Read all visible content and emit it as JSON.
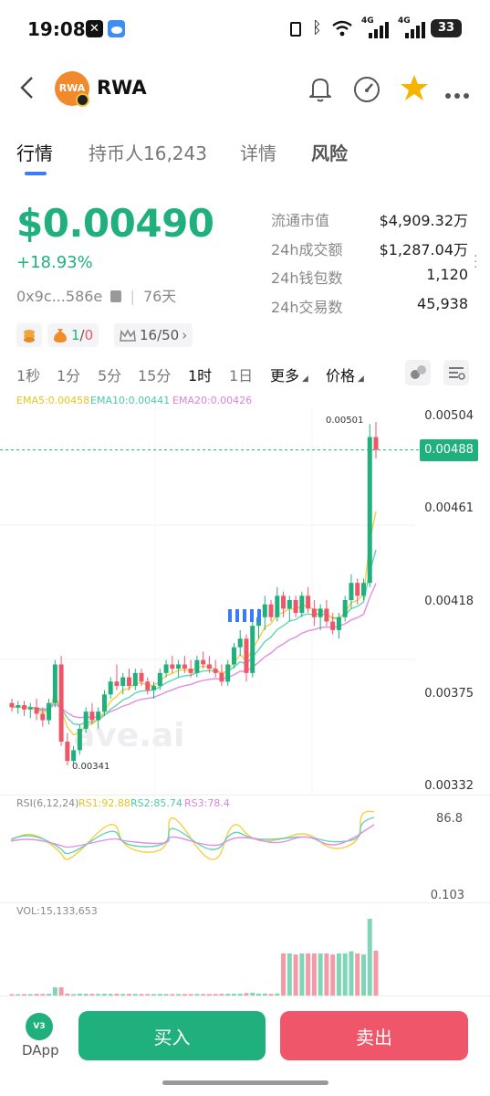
{
  "status_bar": {
    "time": "19:08",
    "battery": "33",
    "signal1": "4G",
    "signal2": "4G"
  },
  "header": {
    "token_name": "RWA",
    "logo_text": "RWA"
  },
  "tabs": [
    {
      "label": "行情"
    },
    {
      "label": "持币人16,243"
    },
    {
      "label": "详情"
    },
    {
      "label": "风险"
    }
  ],
  "price_info": {
    "price": "$0.00490",
    "change": "+18.93%",
    "address": "0x9c...586e",
    "age": "76天"
  },
  "stats": [
    {
      "label": "流通市值",
      "value": "$4,909.32万"
    },
    {
      "label": "24h成交额",
      "value": "$1,287.04万"
    },
    {
      "label": "24h钱包数",
      "value": "1,120"
    },
    {
      "label": "24h交易数",
      "value": "45,938"
    }
  ],
  "chips": {
    "holders_ratio_a": "1",
    "holders_ratio_sep": "/",
    "holders_ratio_b": "0",
    "top_rank": "16/50"
  },
  "timeframes": [
    {
      "label": "1秒"
    },
    {
      "label": "1分"
    },
    {
      "label": "5分"
    },
    {
      "label": "15分"
    },
    {
      "label": "1时"
    },
    {
      "label": "1日"
    },
    {
      "label": "更多"
    },
    {
      "label": "价格"
    }
  ],
  "active_timeframe": "1时",
  "ema_legend": {
    "ema5": "EMA5:0.00458",
    "ema10": "EMA10:0.00441",
    "ema20": "EMA20:0.00426"
  },
  "price_axis": [
    "0.00504",
    "0.00461",
    "0.00418",
    "0.00375",
    "0.00332"
  ],
  "current_price_tag": "0.00488",
  "high_label": "0.00501",
  "low_label": "0.00341",
  "watermark": "ave.ai",
  "rsi": {
    "label": "RSI(6,12,24)",
    "rsi1": "RS1:92.88",
    "rsi2": "RS2:85.74",
    "rsi3": "RS3:78.4",
    "top": "86.8",
    "bottom": "0.103"
  },
  "vol": {
    "label": "VOL:15,133,653"
  },
  "bottom_bar": {
    "dapp_label": "DApp",
    "dapp_badge": "V3",
    "buy_label": "买入",
    "sell_label": "卖出"
  },
  "colors": {
    "up": "#1fb07e",
    "down": "#f0566a",
    "ema5": "#f4d03f",
    "ema10": "#62d4b4",
    "ema20": "#e08ee8"
  },
  "chart_data": {
    "type": "candlestick",
    "ylim": [
      0.00332,
      0.00504
    ],
    "candles": [
      [
        0.0037,
        0.00372,
        0.00366,
        0.00368
      ],
      [
        0.00368,
        0.00371,
        0.00365,
        0.00369
      ],
      [
        0.00369,
        0.00371,
        0.00364,
        0.00367
      ],
      [
        0.00367,
        0.0037,
        0.00363,
        0.00368
      ],
      [
        0.00368,
        0.00372,
        0.00362,
        0.00365
      ],
      [
        0.00365,
        0.00368,
        0.00359,
        0.00362
      ],
      [
        0.00362,
        0.00372,
        0.0036,
        0.0037
      ],
      [
        0.0037,
        0.0039,
        0.00368,
        0.00388
      ],
      [
        0.00388,
        0.00392,
        0.0035,
        0.00352
      ],
      [
        0.00352,
        0.00356,
        0.00341,
        0.00343
      ],
      [
        0.00343,
        0.0035,
        0.00342,
        0.00348
      ],
      [
        0.00348,
        0.0036,
        0.00346,
        0.00358
      ],
      [
        0.00358,
        0.00368,
        0.00356,
        0.00366
      ],
      [
        0.00366,
        0.0037,
        0.0036,
        0.00362
      ],
      [
        0.00362,
        0.00368,
        0.00358,
        0.00366
      ],
      [
        0.00366,
        0.00376,
        0.00364,
        0.00374
      ],
      [
        0.00374,
        0.00382,
        0.00372,
        0.0038
      ],
      [
        0.0038,
        0.00388,
        0.00376,
        0.00378
      ],
      [
        0.00378,
        0.00384,
        0.00374,
        0.00382
      ],
      [
        0.00382,
        0.00386,
        0.00376,
        0.00378
      ],
      [
        0.00378,
        0.00386,
        0.00376,
        0.00384
      ],
      [
        0.00384,
        0.00386,
        0.00378,
        0.0038
      ],
      [
        0.0038,
        0.00382,
        0.00374,
        0.00376
      ],
      [
        0.00376,
        0.0038,
        0.00372,
        0.00378
      ],
      [
        0.00378,
        0.00386,
        0.00376,
        0.00384
      ],
      [
        0.00384,
        0.0039,
        0.00382,
        0.00388
      ],
      [
        0.00388,
        0.00392,
        0.00384,
        0.00386
      ],
      [
        0.00386,
        0.0039,
        0.00382,
        0.00388
      ],
      [
        0.00388,
        0.00392,
        0.00384,
        0.00386
      ],
      [
        0.00386,
        0.0039,
        0.00382,
        0.00384
      ],
      [
        0.00384,
        0.00392,
        0.00382,
        0.0039
      ],
      [
        0.0039,
        0.00394,
        0.00386,
        0.00388
      ],
      [
        0.00388,
        0.00392,
        0.00384,
        0.00386
      ],
      [
        0.00386,
        0.0039,
        0.00382,
        0.00384
      ],
      [
        0.00384,
        0.00388,
        0.00378,
        0.0038
      ],
      [
        0.0038,
        0.0039,
        0.00378,
        0.00388
      ],
      [
        0.00388,
        0.00398,
        0.00386,
        0.00396
      ],
      [
        0.00396,
        0.00404,
        0.00392,
        0.004
      ],
      [
        0.004,
        0.00402,
        0.0038,
        0.00384
      ],
      [
        0.00384,
        0.00408,
        0.00382,
        0.00406
      ],
      [
        0.00406,
        0.00414,
        0.004,
        0.0041
      ],
      [
        0.0041,
        0.0042,
        0.00404,
        0.00416
      ],
      [
        0.00416,
        0.00418,
        0.00408,
        0.0041
      ],
      [
        0.0041,
        0.00424,
        0.00408,
        0.0042
      ],
      [
        0.0042,
        0.00422,
        0.0041,
        0.00414
      ],
      [
        0.00414,
        0.0042,
        0.00408,
        0.00418
      ],
      [
        0.00418,
        0.0042,
        0.0041,
        0.00412
      ],
      [
        0.00412,
        0.00422,
        0.0041,
        0.0042
      ],
      [
        0.0042,
        0.00424,
        0.00412,
        0.00414
      ],
      [
        0.00414,
        0.00418,
        0.00406,
        0.0041
      ],
      [
        0.0041,
        0.00416,
        0.00404,
        0.00414
      ],
      [
        0.00414,
        0.00418,
        0.00406,
        0.00408
      ],
      [
        0.00408,
        0.00412,
        0.00402,
        0.00404
      ],
      [
        0.00404,
        0.00412,
        0.004,
        0.0041
      ],
      [
        0.0041,
        0.0042,
        0.00408,
        0.00418
      ],
      [
        0.00418,
        0.0043,
        0.00414,
        0.00426
      ],
      [
        0.00426,
        0.00428,
        0.00416,
        0.0042
      ],
      [
        0.0042,
        0.00428,
        0.00418,
        0.00426
      ],
      [
        0.00426,
        0.005,
        0.00424,
        0.00494
      ],
      [
        0.00494,
        0.00501,
        0.00484,
        0.00488
      ]
    ]
  }
}
